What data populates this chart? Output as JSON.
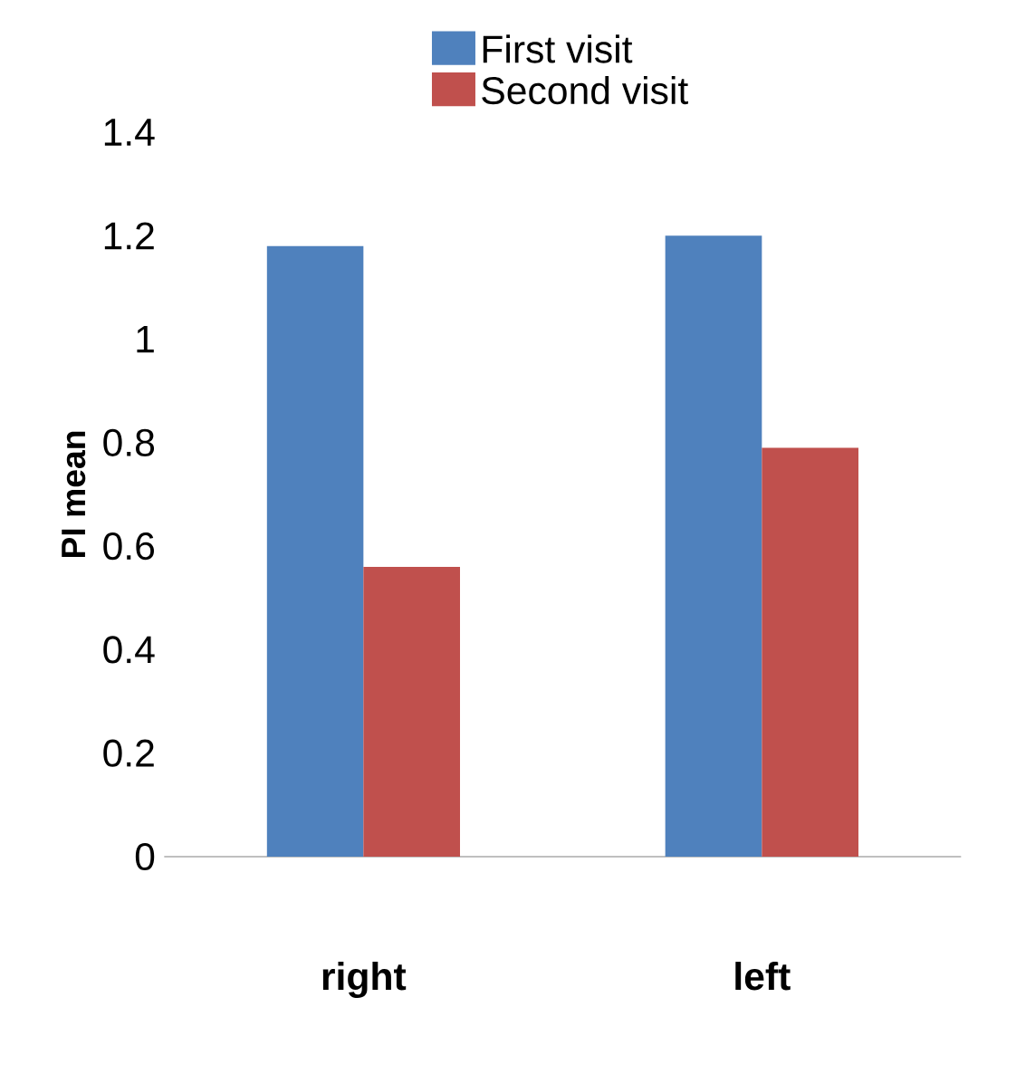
{
  "chart_data": {
    "type": "bar",
    "ylabel": "PI mean",
    "categories": [
      "right",
      "left"
    ],
    "series": [
      {
        "name": "First visit",
        "color": "#4f81bd",
        "values": [
          1.18,
          1.2
        ]
      },
      {
        "name": "Second visit",
        "color": "#c0504d",
        "values": [
          0.56,
          0.79
        ]
      }
    ],
    "ylim": [
      0,
      1.4
    ],
    "yticks": [
      0,
      0.2,
      0.4,
      0.6,
      0.8,
      1,
      1.2,
      1.4
    ],
    "legend": "top"
  }
}
